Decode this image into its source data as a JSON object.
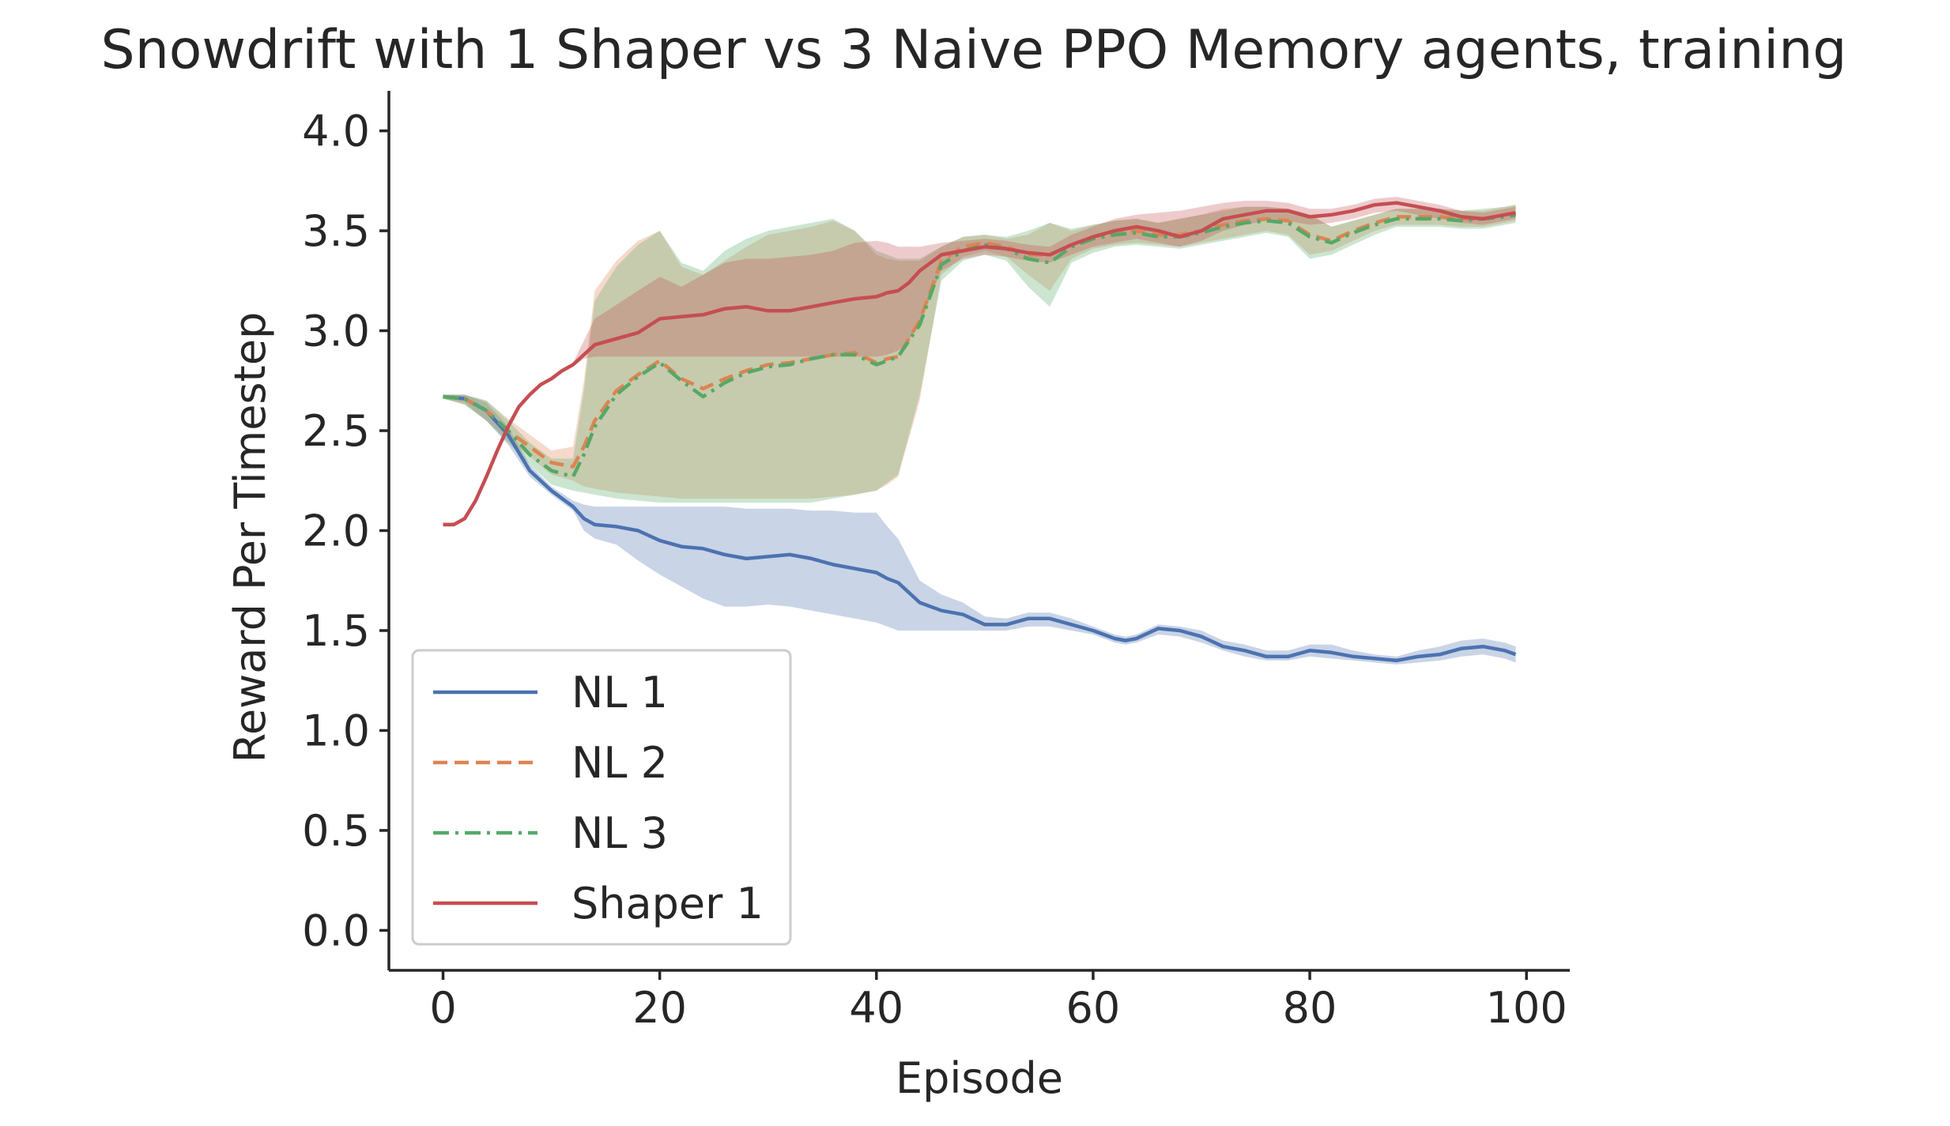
{
  "chart_data": {
    "type": "line",
    "title": "Snowdrift with 1 Shaper vs 3 Naive PPO Memory agents, training",
    "xlabel": "Episode",
    "ylabel": "Reward Per Timestep",
    "xlim": [
      -5,
      104
    ],
    "ylim": [
      -0.2,
      4.2
    ],
    "xticks": [
      0,
      20,
      40,
      60,
      80,
      100
    ],
    "xtick_labels": [
      "0",
      "20",
      "40",
      "60",
      "80",
      "100"
    ],
    "yticks": [
      0.0,
      0.5,
      1.0,
      1.5,
      2.0,
      2.5,
      3.0,
      3.5,
      4.0
    ],
    "ytick_labels": [
      "0.0",
      "0.5",
      "1.0",
      "1.5",
      "2.0",
      "2.5",
      "3.0",
      "3.5",
      "4.0"
    ],
    "grid": false,
    "legend_position": "lower-left",
    "series": [
      {
        "name": "NL 1",
        "color": "#4c72b0",
        "line_style": "solid",
        "x": [
          0,
          2,
          4,
          6,
          8,
          10,
          12,
          13,
          14,
          16,
          18,
          20,
          22,
          24,
          26,
          28,
          30,
          32,
          34,
          36,
          38,
          40,
          41,
          42,
          44,
          46,
          48,
          50,
          52,
          54,
          56,
          58,
          60,
          62,
          63,
          64,
          66,
          68,
          70,
          72,
          74,
          76,
          78,
          80,
          82,
          84,
          86,
          88,
          90,
          92,
          94,
          96,
          98,
          99
        ],
        "y": [
          2.67,
          2.66,
          2.6,
          2.48,
          2.3,
          2.2,
          2.12,
          2.06,
          2.03,
          2.02,
          2.0,
          1.95,
          1.92,
          1.91,
          1.88,
          1.86,
          1.87,
          1.88,
          1.86,
          1.83,
          1.81,
          1.79,
          1.76,
          1.74,
          1.64,
          1.6,
          1.58,
          1.53,
          1.53,
          1.56,
          1.56,
          1.53,
          1.5,
          1.46,
          1.45,
          1.46,
          1.51,
          1.5,
          1.47,
          1.42,
          1.4,
          1.37,
          1.37,
          1.4,
          1.39,
          1.37,
          1.36,
          1.35,
          1.37,
          1.38,
          1.41,
          1.42,
          1.4,
          1.38
        ],
        "lower": [
          2.66,
          2.64,
          2.55,
          2.43,
          2.27,
          2.18,
          2.1,
          2.0,
          1.96,
          1.93,
          1.85,
          1.78,
          1.72,
          1.66,
          1.62,
          1.62,
          1.63,
          1.62,
          1.6,
          1.58,
          1.56,
          1.54,
          1.52,
          1.5,
          1.5,
          1.5,
          1.5,
          1.5,
          1.5,
          1.52,
          1.52,
          1.5,
          1.48,
          1.44,
          1.43,
          1.44,
          1.48,
          1.47,
          1.44,
          1.4,
          1.37,
          1.35,
          1.35,
          1.37,
          1.36,
          1.35,
          1.34,
          1.33,
          1.34,
          1.35,
          1.37,
          1.38,
          1.36,
          1.34
        ],
        "upper": [
          2.68,
          2.68,
          2.64,
          2.52,
          2.33,
          2.22,
          2.15,
          2.13,
          2.12,
          2.12,
          2.12,
          2.12,
          2.12,
          2.12,
          2.12,
          2.11,
          2.11,
          2.11,
          2.1,
          2.1,
          2.09,
          2.09,
          2.02,
          1.96,
          1.75,
          1.68,
          1.64,
          1.57,
          1.56,
          1.59,
          1.59,
          1.56,
          1.52,
          1.48,
          1.47,
          1.48,
          1.53,
          1.52,
          1.5,
          1.45,
          1.43,
          1.4,
          1.4,
          1.43,
          1.43,
          1.4,
          1.38,
          1.37,
          1.4,
          1.42,
          1.45,
          1.46,
          1.44,
          1.42
        ]
      },
      {
        "name": "NL 2",
        "color": "#dd8452",
        "line_style": "dashed",
        "x": [
          0,
          2,
          4,
          6,
          8,
          10,
          12,
          13,
          14,
          16,
          18,
          20,
          22,
          24,
          26,
          28,
          30,
          32,
          34,
          36,
          38,
          40,
          41,
          42,
          44,
          46,
          48,
          50,
          52,
          54,
          56,
          58,
          60,
          62,
          64,
          66,
          68,
          70,
          72,
          74,
          76,
          78,
          80,
          82,
          84,
          86,
          88,
          90,
          92,
          94,
          96,
          98,
          99
        ],
        "y": [
          2.67,
          2.66,
          2.6,
          2.5,
          2.42,
          2.34,
          2.32,
          2.42,
          2.55,
          2.7,
          2.78,
          2.85,
          2.76,
          2.71,
          2.76,
          2.8,
          2.83,
          2.84,
          2.86,
          2.88,
          2.89,
          2.84,
          2.86,
          2.87,
          3.05,
          3.35,
          3.42,
          3.44,
          3.42,
          3.38,
          3.38,
          3.43,
          3.47,
          3.49,
          3.5,
          3.48,
          3.48,
          3.5,
          3.53,
          3.55,
          3.56,
          3.55,
          3.48,
          3.45,
          3.5,
          3.54,
          3.57,
          3.57,
          3.57,
          3.56,
          3.56,
          3.58,
          3.59
        ],
        "lower": [
          2.66,
          2.63,
          2.55,
          2.45,
          2.37,
          2.28,
          2.25,
          2.22,
          2.21,
          2.19,
          2.18,
          2.17,
          2.16,
          2.16,
          2.16,
          2.16,
          2.16,
          2.16,
          2.16,
          2.17,
          2.18,
          2.2,
          2.23,
          2.27,
          2.65,
          3.28,
          3.37,
          3.4,
          3.37,
          3.28,
          3.2,
          3.36,
          3.41,
          3.43,
          3.44,
          3.43,
          3.42,
          3.44,
          3.46,
          3.48,
          3.5,
          3.48,
          3.38,
          3.4,
          3.45,
          3.5,
          3.53,
          3.53,
          3.53,
          3.52,
          3.52,
          3.54,
          3.55
        ],
        "upper": [
          2.68,
          2.68,
          2.65,
          2.56,
          2.48,
          2.4,
          2.42,
          2.75,
          3.2,
          3.35,
          3.45,
          3.5,
          3.32,
          3.28,
          3.35,
          3.42,
          3.48,
          3.5,
          3.52,
          3.55,
          3.5,
          3.38,
          3.36,
          3.35,
          3.35,
          3.42,
          3.47,
          3.48,
          3.46,
          3.48,
          3.54,
          3.5,
          3.53,
          3.55,
          3.56,
          3.54,
          3.56,
          3.58,
          3.61,
          3.62,
          3.62,
          3.61,
          3.58,
          3.52,
          3.55,
          3.58,
          3.61,
          3.61,
          3.61,
          3.6,
          3.6,
          3.62,
          3.63
        ]
      },
      {
        "name": "NL 3",
        "color": "#55a868",
        "line_style": "dashdot",
        "x": [
          0,
          2,
          4,
          6,
          8,
          10,
          12,
          13,
          14,
          16,
          18,
          20,
          22,
          24,
          26,
          28,
          30,
          32,
          34,
          36,
          38,
          40,
          41,
          42,
          44,
          46,
          48,
          50,
          52,
          54,
          56,
          58,
          60,
          62,
          64,
          66,
          68,
          70,
          72,
          74,
          76,
          78,
          80,
          82,
          84,
          86,
          88,
          90,
          92,
          94,
          96,
          98,
          99
        ],
        "y": [
          2.67,
          2.66,
          2.6,
          2.5,
          2.38,
          2.3,
          2.27,
          2.38,
          2.52,
          2.68,
          2.77,
          2.84,
          2.75,
          2.67,
          2.74,
          2.79,
          2.82,
          2.83,
          2.86,
          2.88,
          2.88,
          2.83,
          2.85,
          2.87,
          3.03,
          3.33,
          3.4,
          3.43,
          3.41,
          3.36,
          3.34,
          3.42,
          3.46,
          3.48,
          3.49,
          3.47,
          3.47,
          3.49,
          3.52,
          3.54,
          3.55,
          3.54,
          3.47,
          3.44,
          3.49,
          3.53,
          3.56,
          3.56,
          3.56,
          3.55,
          3.56,
          3.57,
          3.58
        ],
        "lower": [
          2.66,
          2.63,
          2.55,
          2.44,
          2.33,
          2.23,
          2.2,
          2.19,
          2.18,
          2.16,
          2.15,
          2.14,
          2.14,
          2.14,
          2.14,
          2.14,
          2.14,
          2.14,
          2.14,
          2.16,
          2.18,
          2.2,
          2.24,
          2.28,
          2.68,
          3.25,
          3.35,
          3.38,
          3.35,
          3.22,
          3.12,
          3.34,
          3.39,
          3.42,
          3.43,
          3.42,
          3.41,
          3.43,
          3.45,
          3.47,
          3.49,
          3.47,
          3.36,
          3.38,
          3.43,
          3.48,
          3.52,
          3.52,
          3.52,
          3.51,
          3.51,
          3.53,
          3.54
        ],
        "upper": [
          2.68,
          2.68,
          2.65,
          2.55,
          2.44,
          2.36,
          2.36,
          2.7,
          3.15,
          3.32,
          3.43,
          3.5,
          3.34,
          3.3,
          3.4,
          3.46,
          3.5,
          3.52,
          3.54,
          3.56,
          3.5,
          3.4,
          3.38,
          3.36,
          3.36,
          3.42,
          3.47,
          3.48,
          3.47,
          3.5,
          3.54,
          3.51,
          3.53,
          3.55,
          3.56,
          3.54,
          3.56,
          3.58,
          3.6,
          3.62,
          3.62,
          3.61,
          3.58,
          3.52,
          3.55,
          3.58,
          3.61,
          3.61,
          3.61,
          3.6,
          3.61,
          3.62,
          3.63
        ]
      },
      {
        "name": "Shaper 1",
        "color": "#c44e52",
        "line_style": "solid",
        "x": [
          0,
          1,
          2,
          3,
          4,
          5,
          6,
          7,
          8,
          9,
          10,
          11,
          12,
          13,
          14,
          16,
          18,
          20,
          22,
          24,
          26,
          28,
          30,
          32,
          34,
          36,
          38,
          40,
          41,
          42,
          43,
          44,
          46,
          48,
          50,
          52,
          54,
          56,
          58,
          60,
          62,
          64,
          66,
          68,
          70,
          72,
          74,
          76,
          78,
          80,
          82,
          84,
          86,
          88,
          90,
          92,
          94,
          96,
          98,
          99
        ],
        "y": [
          2.03,
          2.03,
          2.06,
          2.15,
          2.27,
          2.4,
          2.52,
          2.62,
          2.68,
          2.73,
          2.76,
          2.8,
          2.83,
          2.88,
          2.93,
          2.96,
          2.99,
          3.06,
          3.07,
          3.08,
          3.11,
          3.12,
          3.1,
          3.1,
          3.12,
          3.14,
          3.16,
          3.17,
          3.19,
          3.2,
          3.24,
          3.3,
          3.38,
          3.4,
          3.42,
          3.41,
          3.39,
          3.38,
          3.43,
          3.47,
          3.5,
          3.52,
          3.5,
          3.47,
          3.5,
          3.56,
          3.58,
          3.6,
          3.6,
          3.57,
          3.58,
          3.6,
          3.63,
          3.64,
          3.62,
          3.6,
          3.57,
          3.56,
          3.58,
          3.59
        ],
        "lower": [
          2.02,
          2.02,
          2.05,
          2.14,
          2.26,
          2.39,
          2.51,
          2.61,
          2.67,
          2.72,
          2.75,
          2.79,
          2.82,
          2.86,
          2.87,
          2.87,
          2.87,
          2.87,
          2.87,
          2.87,
          2.87,
          2.87,
          2.87,
          2.87,
          2.87,
          2.87,
          2.87,
          2.87,
          2.88,
          2.9,
          2.95,
          3.05,
          3.3,
          3.36,
          3.38,
          3.37,
          3.35,
          3.34,
          3.38,
          3.42,
          3.44,
          3.46,
          3.44,
          3.42,
          3.45,
          3.5,
          3.53,
          3.55,
          3.55,
          3.53,
          3.54,
          3.56,
          3.59,
          3.6,
          3.58,
          3.56,
          3.54,
          3.53,
          3.55,
          3.56
        ],
        "upper": [
          2.04,
          2.04,
          2.07,
          2.16,
          2.28,
          2.41,
          2.53,
          2.63,
          2.69,
          2.74,
          2.77,
          2.81,
          2.84,
          2.95,
          3.06,
          3.13,
          3.2,
          3.27,
          3.22,
          3.28,
          3.34,
          3.36,
          3.36,
          3.37,
          3.38,
          3.4,
          3.44,
          3.45,
          3.44,
          3.42,
          3.42,
          3.42,
          3.44,
          3.45,
          3.46,
          3.45,
          3.43,
          3.42,
          3.48,
          3.52,
          3.56,
          3.58,
          3.59,
          3.6,
          3.62,
          3.64,
          3.65,
          3.65,
          3.64,
          3.61,
          3.61,
          3.63,
          3.66,
          3.67,
          3.65,
          3.63,
          3.6,
          3.59,
          3.61,
          3.62
        ]
      }
    ]
  }
}
